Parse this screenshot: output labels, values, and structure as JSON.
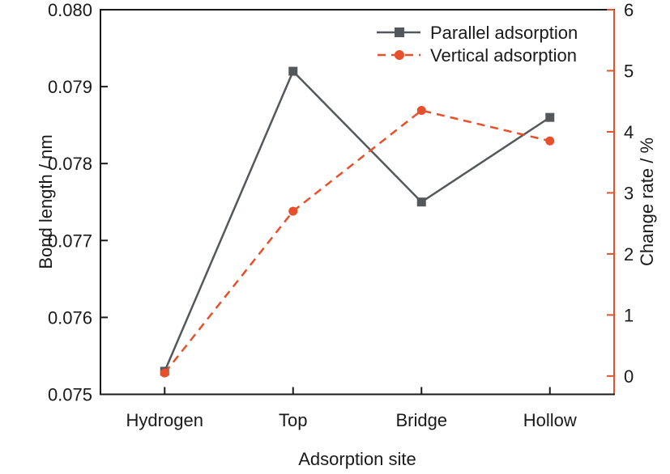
{
  "chart_data": {
    "type": "line",
    "title": "",
    "xlabel": "Adsorption site",
    "categories": [
      "Hydrogen",
      "Top",
      "Bridge",
      "Hollow"
    ],
    "series": [
      {
        "name": "Parallel adsorption",
        "axis": "left",
        "values": [
          0.0753,
          0.0792,
          0.0775,
          0.0786
        ],
        "color": "#54585a",
        "marker": "square",
        "line_style": "solid"
      },
      {
        "name": "Vertical adsorption",
        "axis": "right",
        "values": [
          0.05,
          2.7,
          4.35,
          3.85
        ],
        "color": "#e8502b",
        "marker": "circle",
        "line_style": "dashed"
      }
    ],
    "left_axis": {
      "label": "Bond length / nm",
      "lim": [
        0.075,
        0.08
      ],
      "ticks": [
        0.075,
        0.076,
        0.077,
        0.078,
        0.079,
        0.08
      ],
      "tick_labels": [
        "0.075",
        "0.076",
        "0.077",
        "0.078",
        "0.079",
        "0.080"
      ],
      "color": "#1a1a1a"
    },
    "right_axis": {
      "label": "Change rate / %",
      "lim": [
        -0.3,
        6.0
      ],
      "ticks": [
        0,
        1,
        2,
        3,
        4,
        5,
        6
      ],
      "tick_labels": [
        "0",
        "1",
        "2",
        "3",
        "4",
        "5",
        "6"
      ],
      "color": "#e8502b"
    },
    "grid": false,
    "legend": {
      "position": "top-right"
    }
  }
}
